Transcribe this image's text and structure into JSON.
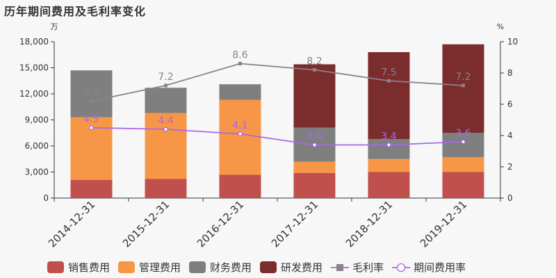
{
  "title": "历年期间费用及毛利率变化",
  "y_unit_left": "万",
  "y_unit_right": "%",
  "chart_data": {
    "type": "bar",
    "title": "历年期间费用及毛利率变化",
    "categories": [
      "2014-12-31",
      "2015-12-31",
      "2016-12-31",
      "2017-12-31",
      "2018-12-31",
      "2019-12-31"
    ],
    "stacked": true,
    "ylim": [
      0,
      18000
    ],
    "y_ticks": [
      "0",
      "3,000",
      "6,000",
      "9,000",
      "12,000",
      "15,000",
      "18,000"
    ],
    "y_tick_values": [
      0,
      3000,
      6000,
      9000,
      12000,
      15000,
      18000
    ],
    "y2lim": [
      0,
      10
    ],
    "y2_ticks": [
      "0",
      "2",
      "4",
      "6",
      "8",
      "10"
    ],
    "y2_tick_values": [
      0,
      2,
      4,
      6,
      8,
      10
    ],
    "grid": false,
    "legend_position": "bottom",
    "series": [
      {
        "name": "销售费用",
        "kind": "bar",
        "color": "#c0504d",
        "values": [
          2100,
          2200,
          2700,
          2900,
          3000,
          3000
        ]
      },
      {
        "name": "管理费用",
        "kind": "bar",
        "color": "#f79646",
        "values": [
          7200,
          7600,
          8600,
          1300,
          1500,
          1700
        ]
      },
      {
        "name": "财务费用",
        "kind": "bar",
        "color": "#7f7f7f",
        "values": [
          5400,
          2900,
          1800,
          3900,
          2300,
          2800
        ]
      },
      {
        "name": "研发费用",
        "kind": "bar",
        "color": "#7b2c2c",
        "values": [
          0,
          0,
          0,
          7300,
          10000,
          10200
        ]
      },
      {
        "name": "毛利率",
        "kind": "line",
        "axis": "right",
        "color": "#8d7f8d",
        "marker": "square",
        "values": [
          6.2,
          7.2,
          8.6,
          8.2,
          7.5,
          7.2
        ],
        "labels": [
          "6.2",
          "7.2",
          "8.6",
          "8.2",
          "7.5",
          "7.2"
        ]
      },
      {
        "name": "期间费用率",
        "kind": "line",
        "axis": "right",
        "color": "#a868e8",
        "marker": "circle",
        "values": [
          4.5,
          4.4,
          4.1,
          3.4,
          3.4,
          3.6
        ],
        "labels": [
          "4.5",
          "4.4",
          "4.1",
          "3.4",
          "3.4",
          "3.6"
        ]
      }
    ]
  }
}
